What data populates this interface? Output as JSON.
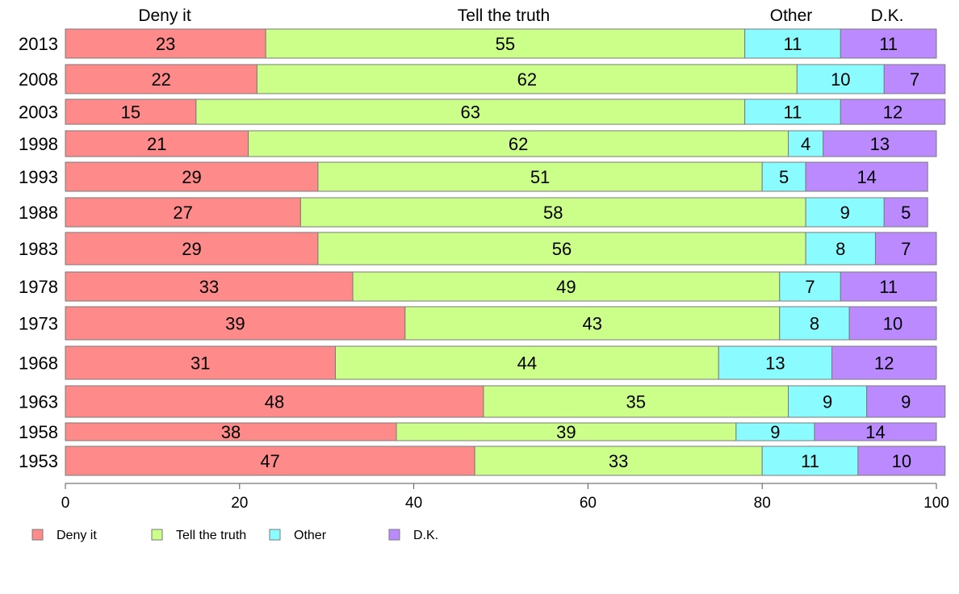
{
  "chart_data": {
    "type": "bar",
    "orientation": "horizontal",
    "stacked": true,
    "title": "",
    "xlabel": "",
    "ylabel": "",
    "xlim": [
      0,
      100
    ],
    "x_ticks": [
      0,
      20,
      40,
      60,
      80,
      100
    ],
    "grid": false,
    "legend_position": "bottom",
    "column_headers": [
      "Deny it",
      "Tell the truth",
      "Other",
      "D.K."
    ],
    "categories": [
      "2013",
      "2008",
      "2003",
      "1998",
      "1993",
      "1988",
      "1983",
      "1978",
      "1973",
      "1968",
      "1963",
      "1958",
      "1953"
    ],
    "series": [
      {
        "name": "Deny it",
        "color": "#ff8a8a",
        "values": [
          23,
          22,
          15,
          21,
          29,
          27,
          29,
          33,
          39,
          31,
          48,
          38,
          47
        ]
      },
      {
        "name": "Tell the truth",
        "color": "#ccff8a",
        "values": [
          55,
          62,
          63,
          62,
          51,
          58,
          56,
          49,
          43,
          44,
          35,
          39,
          33
        ]
      },
      {
        "name": "Other",
        "color": "#8afcff",
        "values": [
          11,
          10,
          11,
          4,
          5,
          9,
          8,
          7,
          8,
          13,
          9,
          9,
          11
        ]
      },
      {
        "name": "D.K.",
        "color": "#bb8aff",
        "values": [
          11,
          7,
          12,
          13,
          14,
          5,
          7,
          11,
          10,
          12,
          9,
          14,
          10
        ]
      }
    ]
  }
}
